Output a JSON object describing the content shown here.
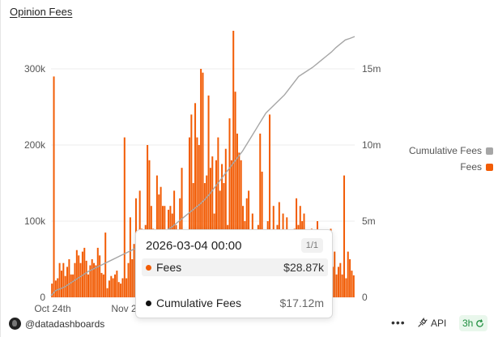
{
  "title": "Opinion Fees",
  "chart_data": {
    "type": "bar",
    "y_left": {
      "ticks": [
        "0",
        "100k",
        "200k",
        "300k"
      ],
      "tick_values": [
        0,
        100000,
        200000,
        300000
      ],
      "range": [
        0,
        350000
      ]
    },
    "y_right": {
      "ticks": [
        "0",
        "5m",
        "10m",
        "15m"
      ],
      "tick_values": [
        0,
        5000000,
        10000000,
        15000000
      ],
      "range": [
        0,
        17500000
      ]
    },
    "x_ticks": [
      "Oct 24th",
      "Nov 2"
    ],
    "grid": true,
    "legend_position": "right",
    "series": [
      {
        "name": "Fees",
        "type": "bar",
        "color": "#f25c05",
        "values": [
          18000,
          290000,
          22000,
          25000,
          45000,
          35000,
          45000,
          28000,
          40000,
          50000,
          30000,
          30000,
          45000,
          62000,
          55000,
          45000,
          60000,
          65000,
          48000,
          30000,
          42000,
          50000,
          45000,
          42000,
          65000,
          55000,
          32000,
          30000,
          85000,
          12000,
          22000,
          28000,
          25000,
          30000,
          35000,
          20000,
          18000,
          25000,
          210000,
          25000,
          45000,
          105000,
          50000,
          70000,
          130000,
          85000,
          140000,
          90000,
          55000,
          95000,
          200000,
          180000,
          120000,
          90000,
          75000,
          160000,
          135000,
          145000,
          120000,
          120000,
          75000,
          115000,
          120000,
          110000,
          140000,
          95000,
          85000,
          130000,
          170000,
          40000,
          60000,
          65000,
          210000,
          240000,
          150000,
          255000,
          210000,
          200000,
          300000,
          295000,
          150000,
          160000,
          265000,
          170000,
          185000,
          110000,
          180000,
          210000,
          140000,
          175000,
          150000,
          195000,
          95000,
          235000,
          180000,
          350000,
          270000,
          215000,
          190000,
          180000,
          120000,
          100000,
          130000,
          140000,
          85000,
          110000,
          65000,
          75000,
          95000,
          215000,
          165000,
          65000,
          60000,
          100000,
          240000,
          85000,
          120000,
          35000,
          95000,
          125000,
          55000,
          110000,
          85000,
          105000,
          60000,
          75000,
          45000,
          90000,
          130000,
          95000,
          120000,
          100000,
          110000,
          68000,
          60000,
          75000,
          90000,
          45000,
          40000,
          100000,
          75000,
          60000,
          80000,
          70000,
          45000,
          60000,
          90000,
          40000,
          60000,
          30000,
          40000,
          45000,
          30000,
          160000,
          25000,
          60000,
          50000,
          35000,
          28870
        ],
        "bar_width_ratio": 0.85
      },
      {
        "name": "Cumulative Fees",
        "type": "line",
        "color": "#a6a6a6",
        "values": [
          100000,
          450000,
          560000,
          700000,
          900000,
          1100000,
          1300000,
          1500000,
          1700000,
          1850000,
          2000000,
          2150000,
          2300000,
          2450000,
          2600000,
          2750000,
          2900000,
          3050000,
          3200000,
          3350000,
          3500000,
          3650000,
          3850000,
          4050000,
          4250000,
          4450000,
          4650000,
          4900000,
          5150000,
          5400000,
          5650000,
          5900000,
          6150000,
          6450000,
          6800000,
          7200000,
          7600000,
          8000000,
          8400000,
          8800000,
          9200000,
          9600000,
          10100000,
          10600000,
          11100000,
          11600000,
          12100000,
          12400000,
          12700000,
          13000000,
          13300000,
          13700000,
          14100000,
          14500000,
          14700000,
          14900000,
          15100000,
          15350000,
          15600000,
          15850000,
          16100000,
          16400000,
          16650000,
          16900000,
          17000000,
          17120000
        ]
      }
    ],
    "legend": [
      {
        "label": "Cumulative Fees",
        "color": "#a6a6a6"
      },
      {
        "label": "Fees",
        "color": "#f25c05"
      }
    ]
  },
  "tooltip": {
    "datetime": "2026-03-04 00:00",
    "page": "1/1",
    "rows": [
      {
        "label": "Fees",
        "value": "$28.87k",
        "color": "#f25c05"
      },
      {
        "label": "Cumulative Fees",
        "value": "$17.12m",
        "color": "#111111"
      }
    ]
  },
  "footer": {
    "brand": "@datadashboards",
    "more_label": "•••",
    "api_label": "API",
    "refresh_label": "3h"
  }
}
